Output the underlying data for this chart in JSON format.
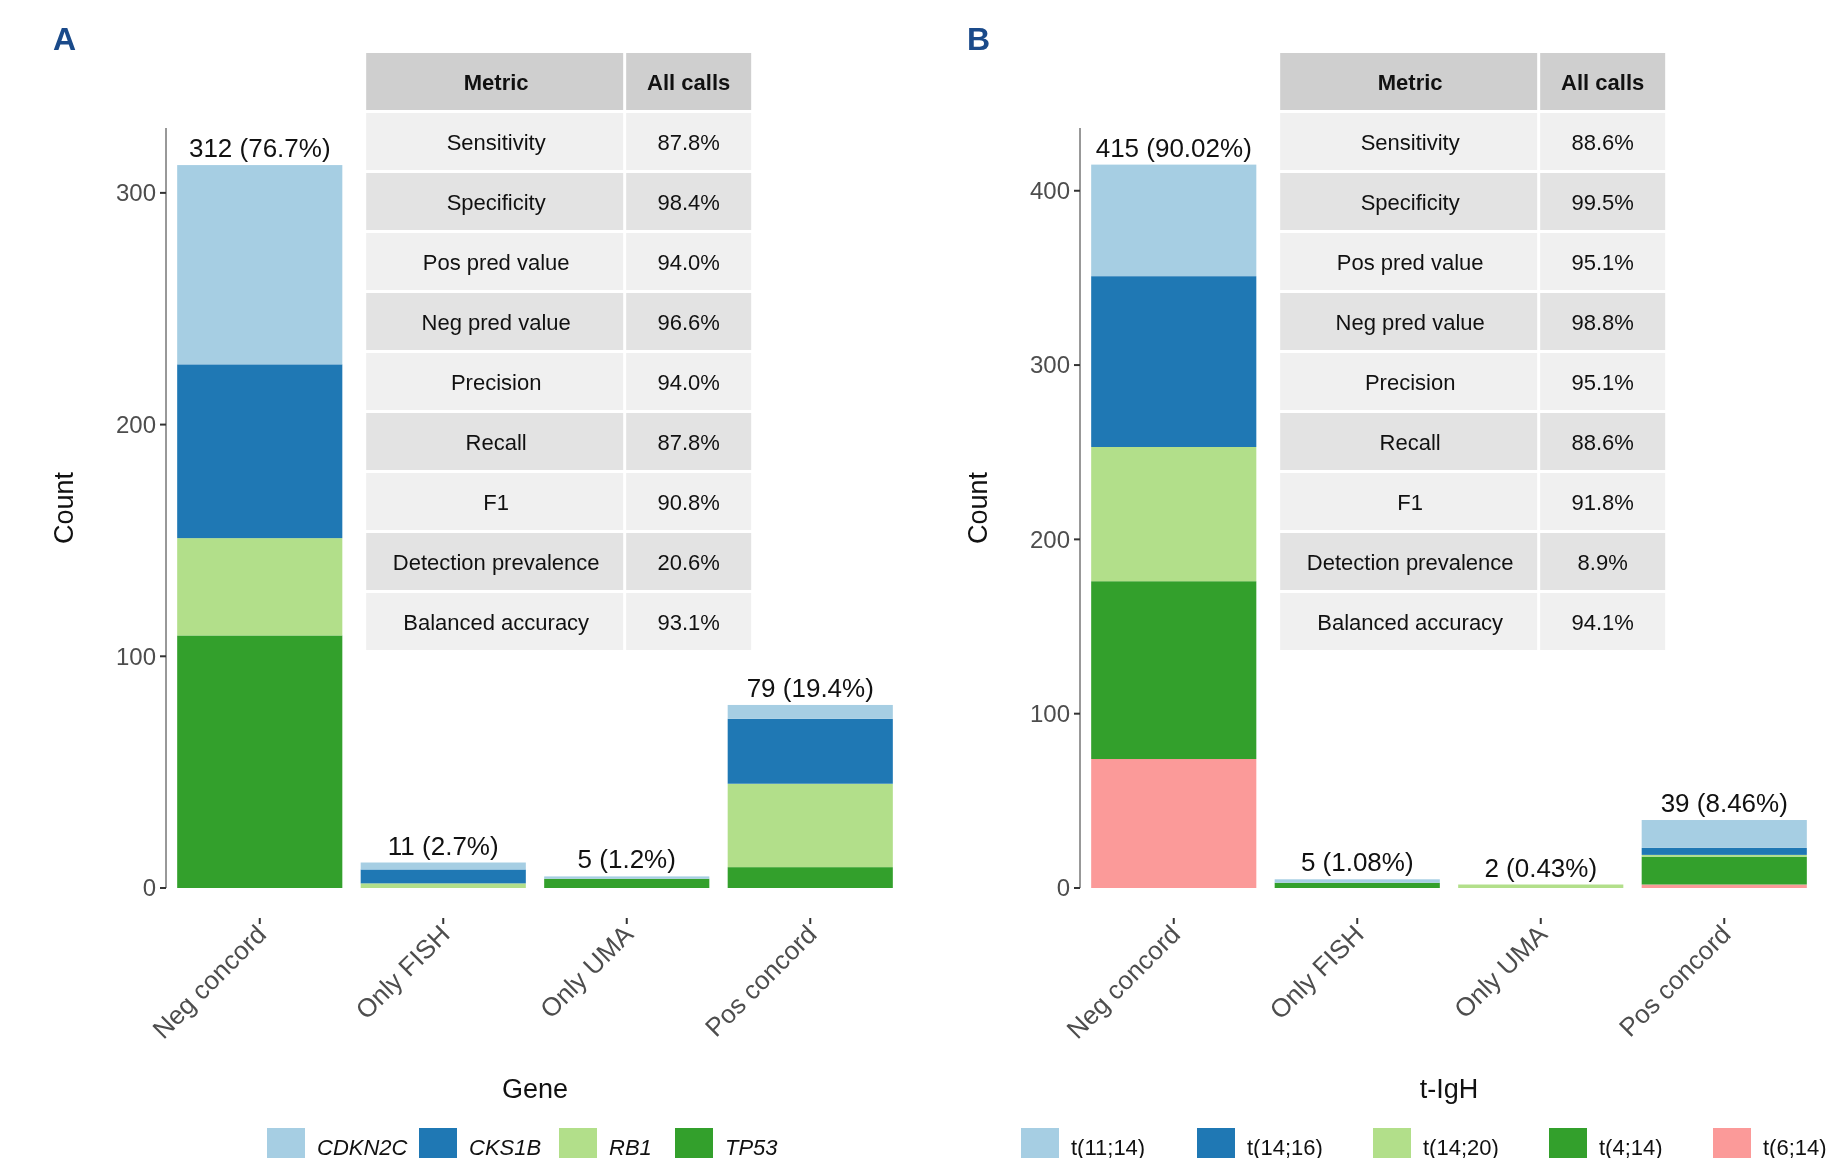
{
  "chart_data": [
    {
      "type": "bar",
      "title": "A",
      "xlabel": "Gene",
      "ylabel": "Count",
      "categories": [
        "Neg concord",
        "Only FISH",
        "Only UMA",
        "Pos concord"
      ],
      "stacked": true,
      "ylim": [
        0,
        328
      ],
      "yticks": [
        0,
        100,
        200,
        300
      ],
      "grid": false,
      "legend": "bottom",
      "totals": [
        "312 (76.7%)",
        "11 (2.7%)",
        "5 (1.2%)",
        "79 (19.4%)"
      ],
      "series": [
        {
          "name": "TP53",
          "color": "#33a02c",
          "values": [
            109,
            0,
            4,
            9
          ]
        },
        {
          "name": "RB1",
          "color": "#b2df8a",
          "values": [
            42,
            2,
            0,
            36
          ]
        },
        {
          "name": "CKS1B",
          "color": "#1f78b4",
          "values": [
            75,
            6,
            0,
            28
          ]
        },
        {
          "name": "CDKN2C",
          "color": "#a6cee3",
          "values": [
            86,
            3,
            1,
            6
          ]
        }
      ],
      "annotations": [
        "Metric",
        "All calls",
        "Sensitivity",
        "87.8%",
        "Specificity",
        "98.4%",
        "Pos pred value",
        "94.0%",
        "Neg pred value",
        "96.6%",
        "Precision",
        "94.0%",
        "Recall",
        "87.8%",
        "F1",
        "90.8%",
        "Detection prevalence",
        "20.6%",
        "Balanced accuracy",
        "93.1%"
      ]
    },
    {
      "type": "bar",
      "title": "B",
      "xlabel": "t-IgH",
      "ylabel": "Count",
      "categories": [
        "Neg concord",
        "Only FISH",
        "Only UMA",
        "Pos concord"
      ],
      "stacked": true,
      "ylim": [
        0,
        436
      ],
      "yticks": [
        0,
        100,
        200,
        300,
        400
      ],
      "grid": false,
      "legend": "bottom",
      "totals": [
        "415 (90.02%)",
        "5 (1.08%)",
        "2 (0.43%)",
        "39 (8.46%)"
      ],
      "series": [
        {
          "name": "t(6;14)",
          "color": "#fb9a99",
          "values": [
            74,
            0,
            0,
            2
          ]
        },
        {
          "name": "t(4;14)",
          "color": "#33a02c",
          "values": [
            102,
            3,
            0,
            16
          ]
        },
        {
          "name": "t(14;20)",
          "color": "#b2df8a",
          "values": [
            77,
            0,
            2,
            1
          ]
        },
        {
          "name": "t(14;16)",
          "color": "#1f78b4",
          "values": [
            98,
            0,
            0,
            4
          ]
        },
        {
          "name": "t(11;14)",
          "color": "#a6cee3",
          "values": [
            64,
            2,
            0,
            16
          ]
        }
      ],
      "annotations": [
        "Metric",
        "All calls",
        "Sensitivity",
        "88.6%",
        "Specificity",
        "99.5%",
        "Pos pred value",
        "95.1%",
        "Neg pred value",
        "98.8%",
        "Precision",
        "95.1%",
        "Recall",
        "88.6%",
        "F1",
        "91.8%",
        "Detection prevalence",
        "8.9%",
        "Balanced accuracy",
        "94.1%"
      ]
    }
  ]
}
